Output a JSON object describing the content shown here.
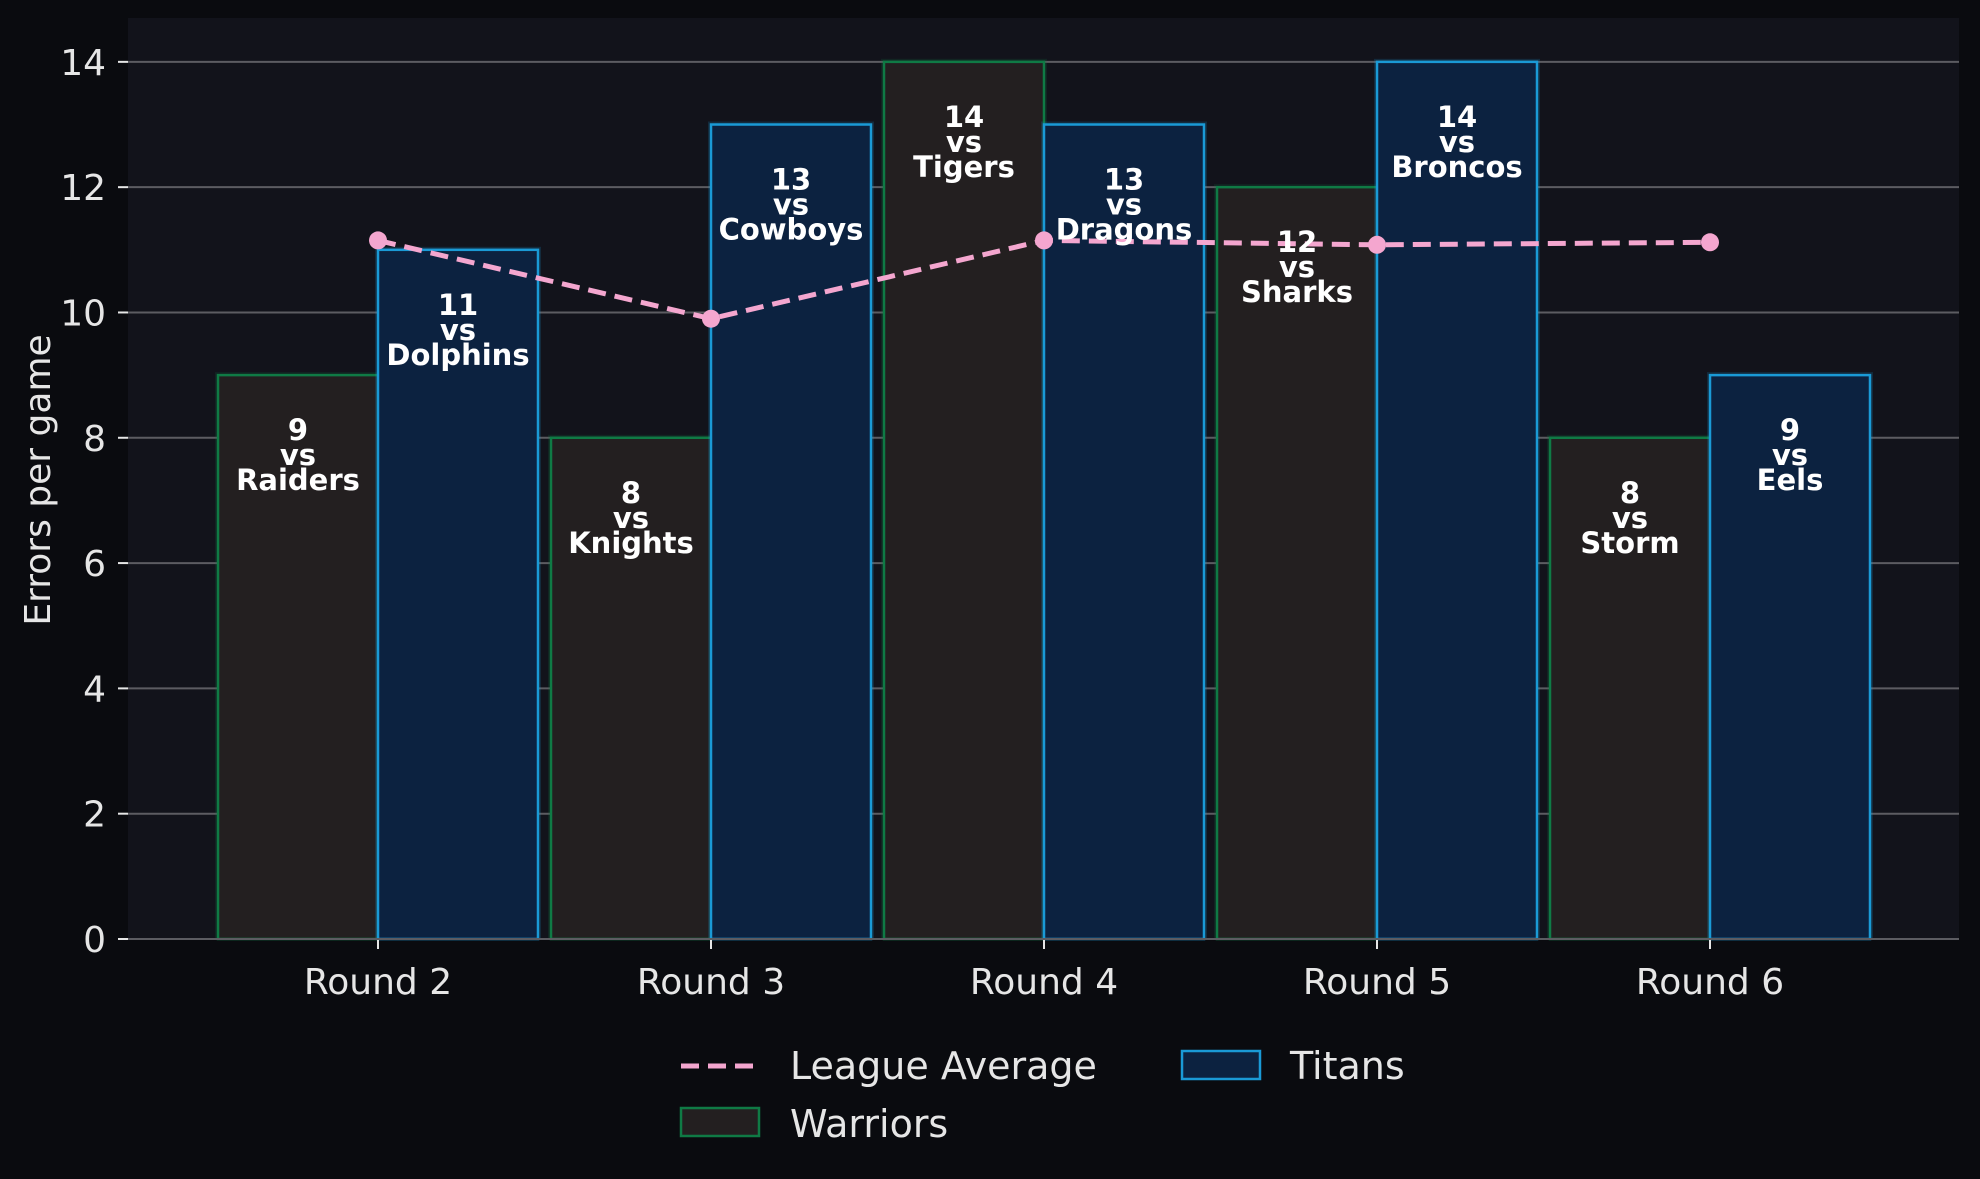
{
  "chart_data": {
    "type": "bar",
    "title": "",
    "xlabel": "",
    "ylabel": "Errors per game",
    "ylim": [
      0,
      14.7
    ],
    "yticks": [
      0,
      2,
      4,
      6,
      8,
      10,
      12,
      14
    ],
    "grid": "horizontal",
    "legend_position": "bottom-center",
    "categories": [
      "Round 2",
      "Round 3",
      "Round 4",
      "Round 5",
      "Round 6"
    ],
    "series": [
      {
        "name": "Warriors",
        "kind": "bar",
        "fill": "#231f20",
        "edge": "#0f7a45",
        "values": [
          9,
          8,
          14,
          12,
          8
        ],
        "labels": [
          [
            "9",
            "vs",
            "Raiders"
          ],
          [
            "8",
            "vs",
            "Knights"
          ],
          [
            "14",
            "vs",
            "Tigers"
          ],
          [
            "12",
            "vs",
            "Sharks"
          ],
          [
            "8",
            "vs",
            "Storm"
          ]
        ]
      },
      {
        "name": "Titans",
        "kind": "bar",
        "fill": "#0c2240",
        "edge": "#1a9ad6",
        "values": [
          11,
          13,
          13,
          14,
          9
        ],
        "labels": [
          [
            "11",
            "vs",
            "Dolphins"
          ],
          [
            "13",
            "vs",
            "Cowboys"
          ],
          [
            "13",
            "vs",
            "Dragons"
          ],
          [
            "14",
            "vs",
            "Broncos"
          ],
          [
            "9",
            "vs",
            "Eels"
          ]
        ]
      },
      {
        "name": "League Average",
        "kind": "line",
        "style": "dashed",
        "color": "#f4a6cf",
        "values": [
          11.15,
          9.9,
          11.15,
          11.08,
          11.12
        ]
      }
    ]
  },
  "colors": {
    "page_background": "#0a0b0f",
    "plot_background": "#12131b",
    "grid": "#5c5c62",
    "text": "#e6e6e6"
  }
}
